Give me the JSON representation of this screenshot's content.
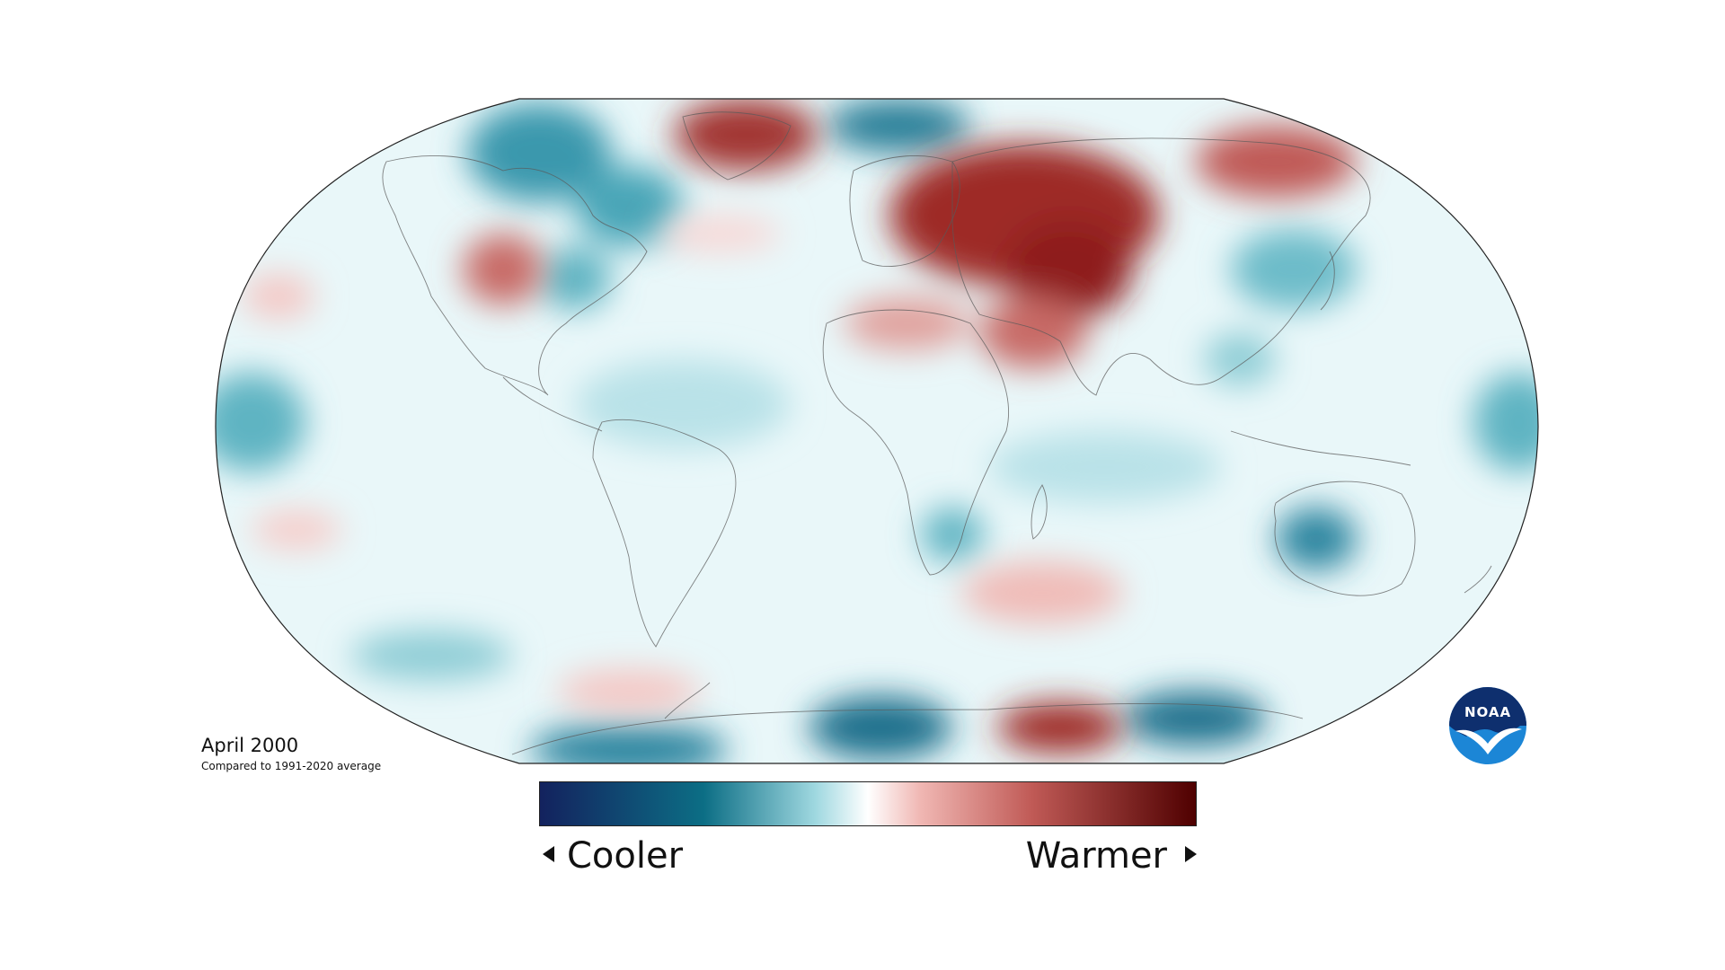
{
  "map": {
    "type": "global-temperature-anomaly",
    "projection": "robinson",
    "period_label": "April 2000",
    "baseline_label": "Compared to 1991-2020 average"
  },
  "legend": {
    "cooler_label": "Cooler",
    "warmer_label": "Warmer",
    "gradient_colors": [
      "#13225e",
      "#0c6e85",
      "#ffffff",
      "#d06d68",
      "#4f0000"
    ]
  },
  "logo": {
    "text": "NOAA",
    "icon": "noaa-logo-icon",
    "colors": {
      "top": "#0e2f6e",
      "bottom": "#1c86d6"
    }
  }
}
